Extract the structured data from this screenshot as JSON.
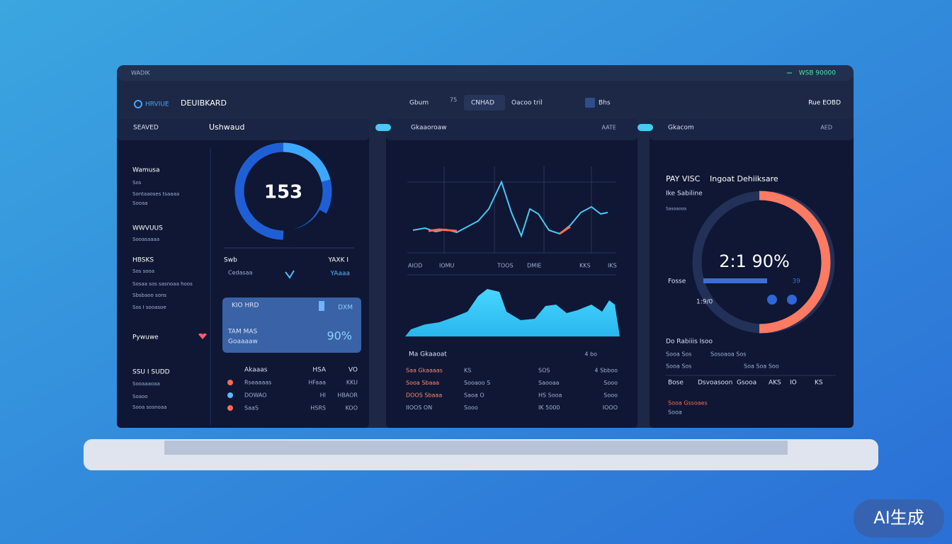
{
  "top_bar": {
    "left": "WADIK",
    "right": "WSB 90000"
  },
  "header": {
    "icon_label": "HRVIUE",
    "brand": "DEUIBKARD",
    "tabs": [
      "Gbum",
      "75",
      "CNHAD",
      "Oacoo tril",
      "Bhs"
    ],
    "right": "Rue EOBD"
  },
  "panel_left": {
    "tab": "SEAVED",
    "title": "Ushwaud",
    "sidebar": [
      "Wamusa",
      "Sos",
      "Sontaaoses tsaaaa",
      "Sooaa",
      "WWVUUS",
      "Sooasaaaa",
      "HBSKS",
      "Sos sooa",
      "Sosaa sos sasnoaa hoos",
      "Sbsbaoo sons",
      "Sos I sooasoe",
      "Pywuwe",
      "SSU I SUDD",
      "Sooaaaoaa",
      "Soaoo",
      "Sooa sosnoaa"
    ],
    "gauge_value": "153",
    "stat_left": "Swb",
    "stat_right": "YAXK I",
    "stat_sub_left": "Cedasaa",
    "stat_sub_right": "YAaaa",
    "card": {
      "label": "KIO HRD",
      "label_right": "DXM",
      "line1": "TAM MAS",
      "line2": "Goaaaaw",
      "value": "90%"
    },
    "table": {
      "header": [
        "Akaaas",
        "HSA",
        "VO"
      ],
      "rows": [
        [
          "Rseaaaas",
          "HFaaa",
          "KKU"
        ],
        [
          "DOWAO",
          "HI",
          "HBAOR"
        ],
        [
          "SaaS",
          "HSRS",
          "KOO"
        ]
      ]
    }
  },
  "panel_center": {
    "tab": "Gkaaoroaw",
    "right": "AATE",
    "x_labels": [
      "AIOD",
      "IOMU",
      "TOOS",
      "DMIE",
      "KKS",
      "IKS"
    ],
    "subtitle": "Ma Gkaaoat",
    "subtitle_right": "4 bo",
    "table": {
      "rows": [
        [
          "Saa Gkaaaas",
          "KS",
          "SOS",
          "4 Sbboo"
        ],
        [
          "Sooa Sbaaa",
          "Sooaoo S",
          "Saooaa",
          "Sooo"
        ],
        [
          "DOOS Sbaaa",
          "Saoa O",
          "HS Sooa",
          "Sooo"
        ],
        [
          "IIOOS ON",
          "Sooo",
          "IK 5000",
          "IOOO"
        ]
      ]
    }
  },
  "panel_right": {
    "tab": "Gkacom",
    "right": "AED",
    "title": "PAY VISC",
    "title2": "Ingoat Dehiiksare",
    "subtitle": "Ike Sabiline",
    "small": "Sasoaooa",
    "gauge_value": "2:1 90%",
    "bar_label": "Fosse",
    "bar_value": "39",
    "gauge_sub": "1:9/0",
    "section": "Do Rabiiis Isoo",
    "rows": [
      [
        "Sooa Sos",
        "Sosoaoa Sos"
      ],
      [
        "Sooa Sos",
        "Soa Soa Soo"
      ],
      [
        "Bose",
        "Dsvoasoon",
        "Gsooa",
        "AKS",
        "IO",
        "KS"
      ]
    ],
    "footer": [
      "Sooa Gssoaes",
      "Sooa"
    ]
  },
  "badge": "AI生成"
}
